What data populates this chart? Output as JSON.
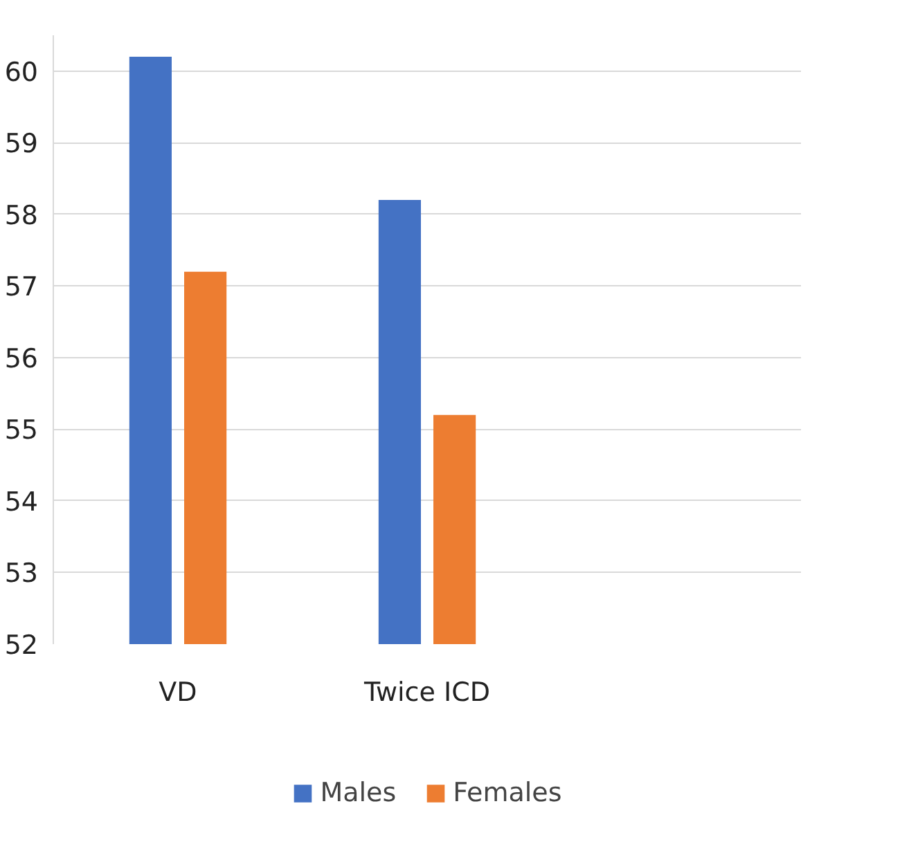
{
  "chart_data": {
    "type": "bar",
    "categories": [
      "VD",
      "Twice ICD",
      null
    ],
    "series": [
      {
        "name": "Males",
        "color": "#4472c4",
        "values": [
          60.2,
          58.2,
          null
        ]
      },
      {
        "name": "Females",
        "color": "#ed7d31",
        "values": [
          57.2,
          55.2,
          null
        ]
      }
    ],
    "ylim": [
      52,
      60.5
    ],
    "yticks": [
      52,
      53,
      54,
      55,
      56,
      57,
      58,
      59,
      60
    ],
    "grid": "y",
    "legend": "bottom"
  }
}
